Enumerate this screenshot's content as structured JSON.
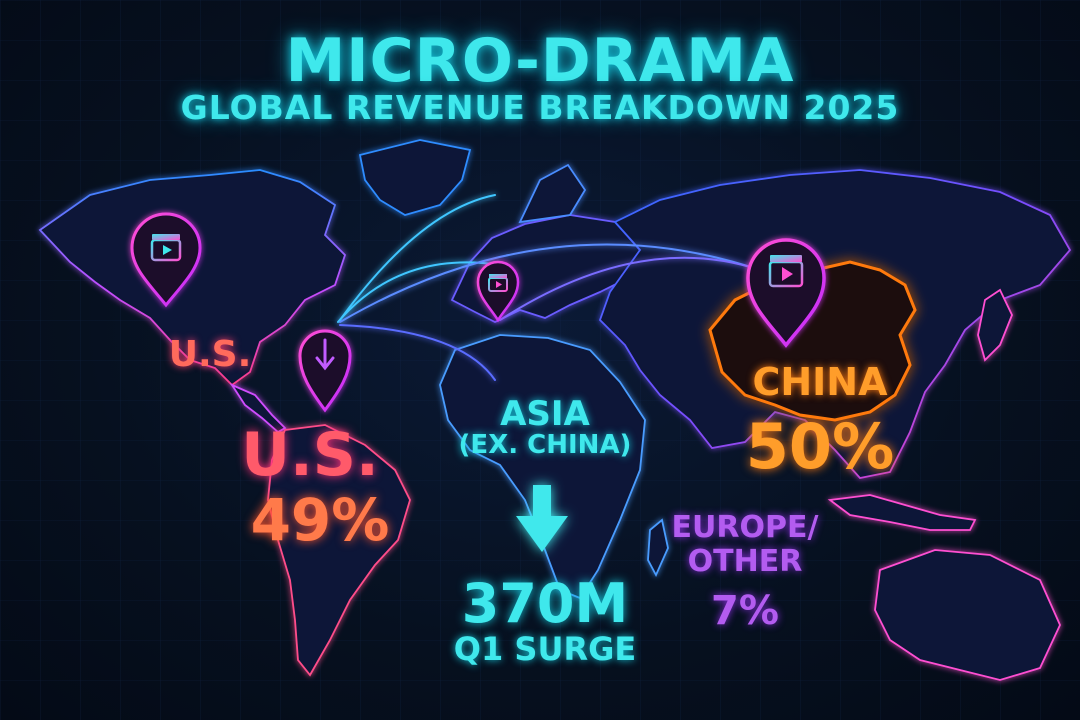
{
  "title": "MICRO-DRAMA",
  "subtitle": "GLOBAL REVENUE BREAKDOWN 2025",
  "colors": {
    "cyan": "#3fe8ec",
    "us_red": "#ff5a6a",
    "china_orange": "#ff9d2a",
    "europe_purple": "#b35cf0",
    "pin_magenta": "#ff3db8"
  },
  "regions": {
    "us_upper_label": "U.S.",
    "us_label": "U.S.",
    "us_share": "49%",
    "asia_label": "ASIA",
    "asia_sublabel": "(EX. CHINA)",
    "asia_value": "370M",
    "asia_value_label": "Q1 SURGE",
    "china_label": "CHINA",
    "china_share": "50%",
    "europe_label_line1": "EUROPE/",
    "europe_label_line2": "OTHER",
    "europe_share": "7%"
  },
  "pins": [
    {
      "name": "us-north-pin",
      "icon": "video-clapper-icon"
    },
    {
      "name": "us-south-pin",
      "icon": "down-arrow-icon"
    },
    {
      "name": "europe-pin",
      "icon": "video-clapper-icon"
    },
    {
      "name": "china-pin",
      "icon": "video-clapper-icon"
    }
  ]
}
